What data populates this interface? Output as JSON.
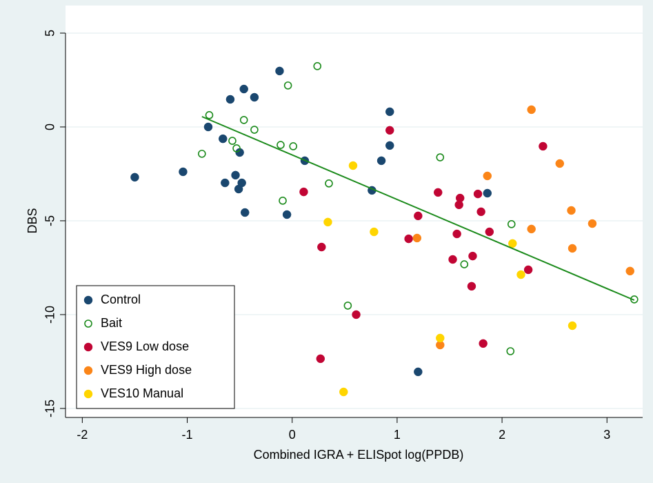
{
  "chart_data": {
    "type": "scatter",
    "x_label": "Combined IGRA + ELISpot log(PPDB)",
    "y_label": "DBS",
    "xlim": [
      -2.16,
      3.34
    ],
    "ylim": [
      -15.48,
      6.47
    ],
    "xticks": [
      -2,
      -1,
      0,
      1,
      2,
      3
    ],
    "yticks": [
      5,
      0,
      -5,
      -10,
      -15
    ],
    "grid": true,
    "legend_position": "bottom-left",
    "series": [
      {
        "name": "Control",
        "color": "#1a476f",
        "marker": "filled",
        "x": [
          -1.5,
          -1.04,
          -0.8,
          -0.66,
          -0.64,
          -0.54,
          -0.51,
          -0.5,
          -0.48,
          -0.59,
          -0.46,
          -0.45,
          -0.36,
          -0.12,
          -0.05,
          0.12,
          0.76,
          0.85,
          0.93,
          0.93,
          1.86,
          1.2
        ],
        "y": [
          -2.68,
          -2.39,
          0.0,
          -0.63,
          -2.98,
          -2.57,
          -3.31,
          -1.36,
          -2.98,
          1.47,
          2.02,
          -4.56,
          1.58,
          2.98,
          -4.67,
          -1.8,
          -3.38,
          -1.8,
          0.81,
          -0.99,
          -3.53,
          -13.05
        ]
      },
      {
        "name": "Bait",
        "color": "#1a8a1a",
        "marker": "hollow",
        "x": [
          -0.86,
          -0.79,
          -0.57,
          -0.53,
          -0.46,
          -0.36,
          -0.11,
          0.01,
          -0.04,
          -0.09,
          0.24,
          0.35,
          0.53,
          1.41,
          1.64,
          2.09,
          2.08,
          3.26
        ],
        "y": [
          -1.43,
          0.63,
          -0.74,
          -1.14,
          0.37,
          -0.15,
          -0.96,
          -1.03,
          2.21,
          -3.93,
          3.24,
          -3.01,
          -9.52,
          -1.62,
          -7.32,
          -5.18,
          -11.95,
          -9.19
        ]
      },
      {
        "name": "VES9 Low dose",
        "color": "#c10534",
        "marker": "filled",
        "x": [
          0.11,
          0.28,
          0.27,
          0.61,
          0.93,
          1.11,
          1.2,
          1.39,
          1.53,
          1.57,
          1.59,
          1.6,
          1.72,
          1.71,
          1.77,
          1.8,
          1.82,
          1.88,
          2.25,
          2.39
        ],
        "y": [
          -3.46,
          -6.4,
          -12.35,
          -10.0,
          -0.18,
          -5.96,
          -4.74,
          -3.49,
          -7.06,
          -5.7,
          -4.15,
          -3.79,
          -6.88,
          -8.49,
          -3.57,
          -4.52,
          -11.54,
          -5.59,
          -7.61,
          -1.03
        ]
      },
      {
        "name": "VES9 High dose",
        "color": "#fb8518",
        "marker": "filled",
        "x": [
          1.19,
          1.41,
          1.86,
          2.28,
          2.28,
          2.55,
          2.66,
          2.67,
          2.86,
          3.22
        ],
        "y": [
          -5.92,
          -11.62,
          -2.61,
          0.92,
          -5.44,
          -1.95,
          -4.45,
          -6.47,
          -5.15,
          -7.68
        ]
      },
      {
        "name": "VES10 Manual",
        "color": "#ffd500",
        "marker": "filled",
        "x": [
          0.34,
          0.49,
          0.58,
          0.78,
          1.41,
          2.1,
          2.18,
          2.67
        ],
        "y": [
          -5.07,
          -14.12,
          -2.06,
          -5.59,
          -11.25,
          -6.21,
          -7.87,
          -10.59
        ]
      }
    ],
    "fit_line": {
      "color": "#1a8a1a",
      "x": [
        -0.86,
        3.26
      ],
      "y": [
        0.55,
        -9.23
      ]
    }
  }
}
